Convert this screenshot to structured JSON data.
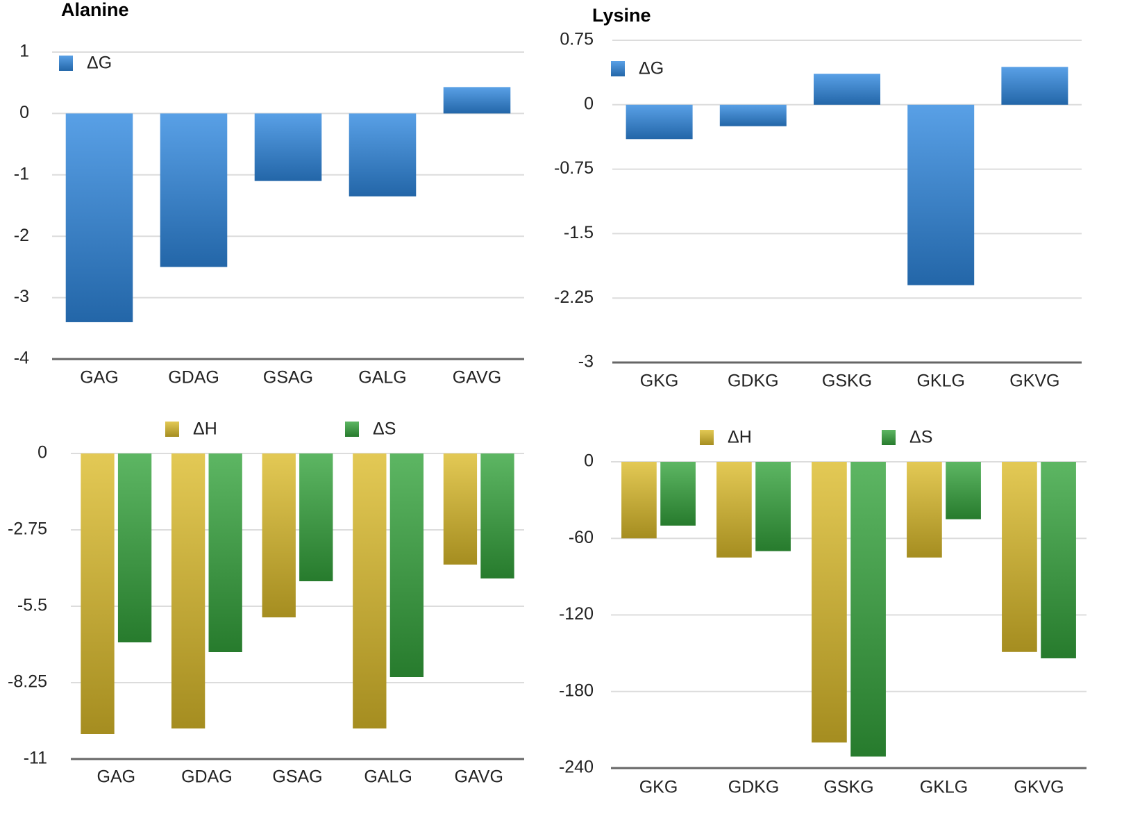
{
  "chart_data": [
    {
      "type": "bar",
      "title": "Alanine",
      "legend": "upper left",
      "grid": true,
      "categories": [
        "GAG",
        "GDAG",
        "GSAG",
        "GALG",
        "GAVG"
      ],
      "series": [
        {
          "name": "ΔG",
          "color": "#2f88e0",
          "values": [
            -3.4,
            -2.5,
            -1.1,
            -1.35,
            0.43
          ]
        }
      ],
      "ylim": [
        -4,
        1
      ],
      "yticks": [
        -4,
        -3,
        -2,
        -1,
        0,
        1
      ]
    },
    {
      "type": "bar",
      "title": "Lysine",
      "legend": "upper left",
      "grid": true,
      "categories": [
        "GKG",
        "GDKG",
        "GSKG",
        "GKLG",
        "GKVG"
      ],
      "series": [
        {
          "name": "ΔG",
          "color": "#2f88e0",
          "values": [
            -0.4,
            -0.25,
            0.36,
            -2.1,
            0.44
          ]
        }
      ],
      "ylim": [
        -3,
        0.75
      ],
      "yticks": [
        -3,
        -2.25,
        -1.5,
        -0.75,
        0,
        0.75
      ]
    },
    {
      "type": "bar",
      "legend": "top",
      "grid": true,
      "categories": [
        "GAG",
        "GDAG",
        "GSAG",
        "GALG",
        "GAVG"
      ],
      "series": [
        {
          "name": "ΔH",
          "color": "#dcbc2a",
          "values": [
            -10.1,
            -9.9,
            -5.9,
            -9.9,
            -4.0
          ]
        },
        {
          "name": "ΔS",
          "color": "#34a43c",
          "values": [
            -6.8,
            -7.15,
            -4.6,
            -8.05,
            -4.5
          ]
        }
      ],
      "ylim": [
        -11,
        0
      ],
      "yticks": [
        -11,
        -8.25,
        -5.5,
        -2.75,
        0
      ]
    },
    {
      "type": "bar",
      "legend": "top",
      "grid": true,
      "categories": [
        "GKG",
        "GDKG",
        "GSKG",
        "GKLG",
        "GKVG"
      ],
      "series": [
        {
          "name": "ΔH",
          "color": "#dcbc2a",
          "values": [
            -60,
            -75,
            -220,
            -75,
            -149
          ]
        },
        {
          "name": "ΔS",
          "color": "#34a43c",
          "values": [
            -50,
            -70,
            -231,
            -45,
            -154
          ]
        }
      ],
      "ylim": [
        -240,
        0
      ],
      "yticks": [
        -240,
        -180,
        -120,
        -60,
        0
      ]
    }
  ]
}
